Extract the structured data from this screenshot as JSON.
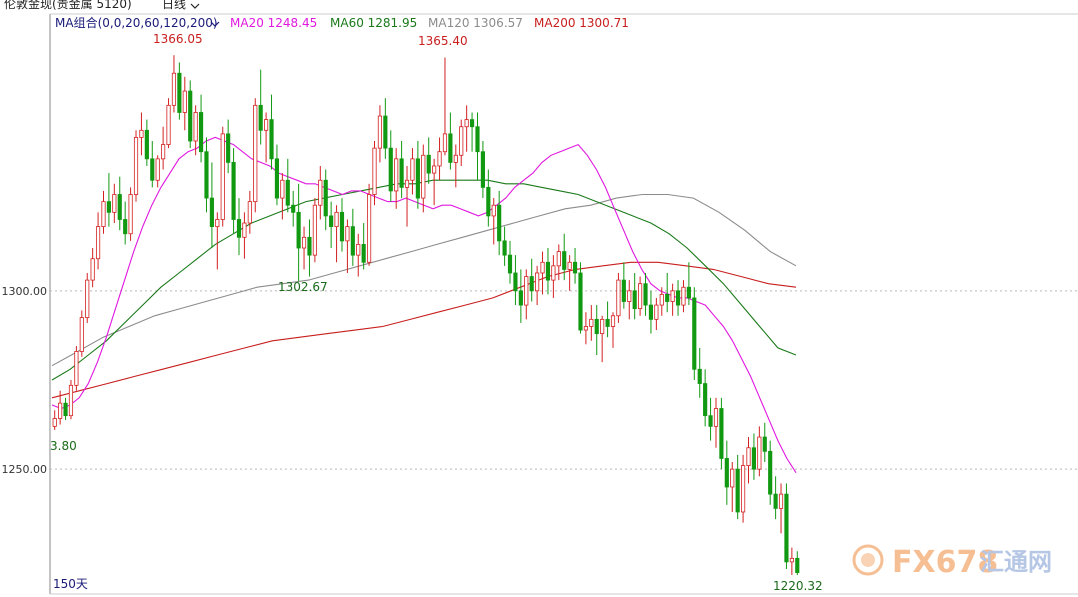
{
  "header": {
    "symbol": "伦敦金现(贵金属 5120)",
    "period_label": "日线",
    "period_chevron_icon": "chevron-down-icon",
    "ma_group_label": "MA组合(0,0,20,60,120,200)",
    "ma_group_chevron_icon": "chevron-down-icon",
    "indicators": [
      {
        "label": "MA20 1248.45",
        "color": "#e018e0"
      },
      {
        "label": "MA60 1281.95",
        "color": "#1a7a1a"
      },
      {
        "label": "MA120 1306.57",
        "color": "#8c8c8c"
      },
      {
        "label": "MA200 1300.71",
        "color": "#c81e1e"
      }
    ]
  },
  "colors": {
    "up": "#d42020",
    "down": "#119911",
    "ma20": "#e018e0",
    "ma60": "#1a7a1a",
    "ma120": "#8c8c8c",
    "ma200": "#c81e1e",
    "grid": "#b9b9b9"
  },
  "annotations": {
    "high_left": "1366.05",
    "high_mid": "1365.40",
    "low_mid": "1302.67",
    "low_left": "3.80",
    "low_last": "1220.32",
    "period_count": "150天"
  },
  "watermark": {
    "text": "FX678",
    "cn": "汇通网",
    "logo_icon": "fx678-logo-icon"
  },
  "chart_data": {
    "type": "candlestick",
    "title": "",
    "ylim": [
      1215,
      1372
    ],
    "yticks": [
      "1300.00",
      "1250.00"
    ],
    "grid": "horizontal-dotted",
    "candles": [
      [
        1262.0,
        1266.5,
        1261.0,
        1264.2
      ],
      [
        1264.2,
        1272.0,
        1262.5,
        1268.5
      ],
      [
        1268.5,
        1270.0,
        1263.8,
        1265.0
      ],
      [
        1265.0,
        1275.0,
        1264.0,
        1273.5
      ],
      [
        1273.5,
        1284.5,
        1272.0,
        1283.0
      ],
      [
        1283.0,
        1294.5,
        1281.5,
        1292.5
      ],
      [
        1292.5,
        1305.0,
        1291.0,
        1303.0
      ],
      [
        1303.0,
        1312.0,
        1301.0,
        1309.0
      ],
      [
        1309.0,
        1322.0,
        1306.0,
        1318.0
      ],
      [
        1318.0,
        1328.0,
        1316.0,
        1325.0
      ],
      [
        1325.0,
        1333.0,
        1318.0,
        1322.0
      ],
      [
        1322.0,
        1330.0,
        1319.0,
        1327.0
      ],
      [
        1327.0,
        1332.0,
        1317.0,
        1320.0
      ],
      [
        1320.0,
        1325.0,
        1313.0,
        1316.0
      ],
      [
        1316.0,
        1329.0,
        1314.0,
        1327.0
      ],
      [
        1327.0,
        1345.0,
        1325.0,
        1343.0
      ],
      [
        1343.0,
        1350.0,
        1338.0,
        1345.0
      ],
      [
        1345.0,
        1348.0,
        1335.0,
        1337.0
      ],
      [
        1337.0,
        1342.0,
        1329.0,
        1331.0
      ],
      [
        1331.0,
        1338.0,
        1329.0,
        1337.0
      ],
      [
        1337.0,
        1346.0,
        1334.0,
        1341.0
      ],
      [
        1341.0,
        1354.0,
        1340.0,
        1352.0
      ],
      [
        1352.0,
        1366.05,
        1350.0,
        1361.0
      ],
      [
        1361.0,
        1364.0,
        1348.0,
        1350.0
      ],
      [
        1350.0,
        1360.0,
        1345.0,
        1356.0
      ],
      [
        1356.0,
        1359.0,
        1340.0,
        1342.0
      ],
      [
        1342.0,
        1352.0,
        1338.0,
        1350.0
      ],
      [
        1350.0,
        1355.0,
        1336.0,
        1339.0
      ],
      [
        1339.0,
        1343.0,
        1322.0,
        1326.0
      ],
      [
        1326.0,
        1336.0,
        1312.0,
        1318.0
      ],
      [
        1318.0,
        1322.0,
        1306.0,
        1320.0
      ],
      [
        1320.0,
        1346.0,
        1318.0,
        1344.0
      ],
      [
        1344.0,
        1348.0,
        1333.0,
        1336.0
      ],
      [
        1336.0,
        1340.0,
        1316.0,
        1320.0
      ],
      [
        1320.0,
        1326.0,
        1310.0,
        1315.0
      ],
      [
        1315.0,
        1322.0,
        1309.0,
        1319.0
      ],
      [
        1319.0,
        1328.0,
        1316.0,
        1325.0
      ],
      [
        1325.0,
        1354.0,
        1322.0,
        1352.0
      ],
      [
        1352.0,
        1362.0,
        1341.0,
        1345.0
      ],
      [
        1345.0,
        1350.0,
        1336.0,
        1348.0
      ],
      [
        1348.0,
        1355.0,
        1334.0,
        1337.0
      ],
      [
        1337.0,
        1341.0,
        1324.0,
        1326.0
      ],
      [
        1326.0,
        1333.0,
        1320.0,
        1331.0
      ],
      [
        1331.0,
        1337.0,
        1322.0,
        1324.0
      ],
      [
        1324.0,
        1328.0,
        1318.0,
        1322.0
      ],
      [
        1322.0,
        1330.0,
        1302.67,
        1312.0
      ],
      [
        1312.0,
        1318.0,
        1306.0,
        1315.0
      ],
      [
        1315.0,
        1320.0,
        1304.0,
        1310.0
      ],
      [
        1310.0,
        1326.0,
        1308.0,
        1324.0
      ],
      [
        1324.0,
        1335.0,
        1320.0,
        1331.0
      ],
      [
        1331.0,
        1334.0,
        1317.0,
        1321.0
      ],
      [
        1321.0,
        1325.0,
        1312.0,
        1318.0
      ],
      [
        1318.0,
        1324.0,
        1308.0,
        1322.0
      ],
      [
        1322.0,
        1326.0,
        1311.0,
        1314.0
      ],
      [
        1314.0,
        1320.0,
        1305.0,
        1318.0
      ],
      [
        1318.0,
        1323.0,
        1307.0,
        1310.0
      ],
      [
        1310.0,
        1316.0,
        1304.0,
        1313.0
      ],
      [
        1313.0,
        1319.0,
        1306.0,
        1308.0
      ],
      [
        1308.0,
        1330.0,
        1307.0,
        1327.0
      ],
      [
        1327.0,
        1342.0,
        1324.0,
        1340.0
      ],
      [
        1340.0,
        1352.0,
        1336.0,
        1349.0
      ],
      [
        1349.0,
        1354.0,
        1337.0,
        1340.0
      ],
      [
        1340.0,
        1345.0,
        1325.0,
        1328.0
      ],
      [
        1328.0,
        1340.0,
        1323.0,
        1337.0
      ],
      [
        1337.0,
        1342.0,
        1326.0,
        1329.0
      ],
      [
        1329.0,
        1335.0,
        1318.0,
        1331.0
      ],
      [
        1331.0,
        1340.0,
        1327.0,
        1337.0
      ],
      [
        1337.0,
        1342.0,
        1323.0,
        1326.0
      ],
      [
        1326.0,
        1341.0,
        1322.0,
        1338.0
      ],
      [
        1338.0,
        1343.0,
        1330.0,
        1333.0
      ],
      [
        1333.0,
        1337.0,
        1324.0,
        1335.0
      ],
      [
        1335.0,
        1343.0,
        1331.0,
        1339.0
      ],
      [
        1339.0,
        1365.4,
        1338.0,
        1344.0
      ],
      [
        1344.0,
        1350.0,
        1334.0,
        1336.0
      ],
      [
        1336.0,
        1341.0,
        1329.0,
        1338.0
      ],
      [
        1338.0,
        1348.0,
        1335.0,
        1346.0
      ],
      [
        1346.0,
        1352.0,
        1339.0,
        1348.0
      ],
      [
        1348.0,
        1350.0,
        1339.0,
        1346.0
      ],
      [
        1346.0,
        1350.0,
        1331.0,
        1339.0
      ],
      [
        1339.0,
        1342.0,
        1326.0,
        1329.0
      ],
      [
        1329.0,
        1334.0,
        1318.0,
        1321.0
      ],
      [
        1321.0,
        1326.0,
        1313.0,
        1324.0
      ],
      [
        1324.0,
        1328.0,
        1310.0,
        1314.0
      ],
      [
        1314.0,
        1318.0,
        1307.0,
        1310.0
      ],
      [
        1310.0,
        1314.0,
        1302.0,
        1305.0
      ],
      [
        1305.0,
        1310.0,
        1296.0,
        1300.0
      ],
      [
        1300.0,
        1306.0,
        1291.0,
        1296.0
      ],
      [
        1296.0,
        1306.0,
        1292.0,
        1304.0
      ],
      [
        1304.0,
        1309.0,
        1297.0,
        1300.0
      ],
      [
        1300.0,
        1307.0,
        1296.0,
        1305.0
      ],
      [
        1305.0,
        1311.0,
        1299.0,
        1308.0
      ],
      [
        1308.0,
        1312.0,
        1299.0,
        1303.0
      ],
      [
        1303.0,
        1310.0,
        1298.0,
        1307.0
      ],
      [
        1307.0,
        1313.0,
        1303.0,
        1311.0
      ],
      [
        1311.0,
        1316.0,
        1303.0,
        1306.0
      ],
      [
        1306.0,
        1310.0,
        1300.0,
        1308.0
      ],
      [
        1308.0,
        1312.0,
        1302.0,
        1305.0
      ],
      [
        1305.0,
        1308.0,
        1288.0,
        1289.0
      ],
      [
        1289.0,
        1294.0,
        1285.0,
        1290.0
      ],
      [
        1290.0,
        1296.0,
        1286.0,
        1292.0
      ],
      [
        1292.0,
        1296.0,
        1282.0,
        1288.0
      ],
      [
        1288.0,
        1293.0,
        1280.0,
        1292.0
      ],
      [
        1292.0,
        1297.0,
        1287.0,
        1290.0
      ],
      [
        1290.0,
        1294.0,
        1284.0,
        1293.0
      ],
      [
        1293.0,
        1305.0,
        1291.0,
        1303.0
      ],
      [
        1303.0,
        1308.0,
        1295.0,
        1297.0
      ],
      [
        1297.0,
        1303.0,
        1292.0,
        1300.0
      ],
      [
        1300.0,
        1305.0,
        1292.0,
        1295.0
      ],
      [
        1295.0,
        1304.0,
        1293.0,
        1302.0
      ],
      [
        1302.0,
        1305.0,
        1293.0,
        1296.0
      ],
      [
        1296.0,
        1300.0,
        1288.0,
        1292.0
      ],
      [
        1292.0,
        1298.0,
        1289.0,
        1296.0
      ],
      [
        1296.0,
        1301.0,
        1293.0,
        1299.0
      ],
      [
        1299.0,
        1305.0,
        1294.0,
        1297.0
      ],
      [
        1297.0,
        1302.0,
        1293.0,
        1300.0
      ],
      [
        1300.0,
        1303.0,
        1293.0,
        1296.0
      ],
      [
        1296.0,
        1303.0,
        1294.0,
        1301.0
      ],
      [
        1301.0,
        1308.0,
        1296.0,
        1298.0
      ],
      [
        1298.0,
        1301.0,
        1275.0,
        1278.0
      ],
      [
        1278.0,
        1284.0,
        1270.0,
        1274.0
      ],
      [
        1274.0,
        1278.0,
        1262.0,
        1265.0
      ],
      [
        1265.0,
        1270.0,
        1258.0,
        1262.0
      ],
      [
        1262.0,
        1270.0,
        1256.0,
        1267.0
      ],
      [
        1267.0,
        1270.0,
        1250.0,
        1253.0
      ],
      [
        1253.0,
        1258.0,
        1240.0,
        1245.0
      ],
      [
        1245.0,
        1252.0,
        1238.0,
        1250.0
      ],
      [
        1250.0,
        1254.0,
        1236.0,
        1238.0
      ],
      [
        1238.0,
        1254.0,
        1235.0,
        1251.0
      ],
      [
        1251.0,
        1259.0,
        1246.0,
        1256.0
      ],
      [
        1256.0,
        1260.0,
        1247.0,
        1250.0
      ],
      [
        1250.0,
        1262.0,
        1248.0,
        1259.0
      ],
      [
        1259.0,
        1263.0,
        1252.0,
        1255.0
      ],
      [
        1255.0,
        1258.0,
        1240.0,
        1243.0
      ],
      [
        1243.0,
        1248.0,
        1236.0,
        1239.0
      ],
      [
        1239.0,
        1246.0,
        1232.0,
        1243.0
      ],
      [
        1243.0,
        1246.0,
        1222.0,
        1224.0
      ],
      [
        1224.0,
        1228.0,
        1220.32,
        1225.0
      ],
      [
        1225.0,
        1227.0,
        1220.32,
        1221.0
      ]
    ],
    "ma20": [
      1268,
      1267,
      1268,
      1270,
      1274,
      1280,
      1287,
      1295,
      1303,
      1311,
      1318,
      1324,
      1329,
      1333,
      1337,
      1339,
      1340,
      1342,
      1343,
      1342,
      1341,
      1339,
      1337,
      1336,
      1335,
      1333,
      1332,
      1331,
      1330,
      1330,
      1329,
      1328,
      1327,
      1328,
      1328,
      1327,
      1326,
      1325,
      1325,
      1326,
      1325,
      1324,
      1323,
      1324,
      1324,
      1323,
      1322,
      1321,
      1322,
      1324,
      1326,
      1329,
      1331,
      1333,
      1336,
      1338,
      1339,
      1340,
      1341,
      1338,
      1334,
      1329,
      1323,
      1317,
      1311,
      1306,
      1302,
      1300,
      1299,
      1298,
      1298,
      1297,
      1296,
      1293,
      1290,
      1286,
      1281,
      1276,
      1270,
      1264,
      1258,
      1253,
      1249
    ],
    "ma60": [
      1275,
      1278,
      1282,
      1286,
      1291,
      1296,
      1301,
      1305,
      1309,
      1313,
      1316,
      1319,
      1321,
      1323,
      1325,
      1326,
      1327,
      1328,
      1329,
      1330,
      1330,
      1331,
      1331,
      1331,
      1331,
      1330,
      1330,
      1329,
      1328,
      1327,
      1325,
      1323,
      1321,
      1319,
      1316,
      1312,
      1307,
      1302,
      1296,
      1290,
      1284,
      1282
    ],
    "ma120": [
      1279,
      1283,
      1287,
      1290,
      1293,
      1295,
      1297,
      1299,
      1301,
      1302,
      1303,
      1305,
      1307,
      1309,
      1311,
      1313,
      1315,
      1317,
      1319,
      1321,
      1323,
      1324,
      1326,
      1327,
      1327,
      1326,
      1322,
      1317,
      1311,
      1307
    ],
    "ma200": [
      1270,
      1272,
      1274,
      1276,
      1278,
      1280,
      1282,
      1284,
      1286,
      1287,
      1288,
      1289,
      1290,
      1292,
      1294,
      1296,
      1298,
      1301,
      1304,
      1306,
      1307,
      1308,
      1308,
      1307,
      1306,
      1304,
      1302,
      1301
    ]
  }
}
